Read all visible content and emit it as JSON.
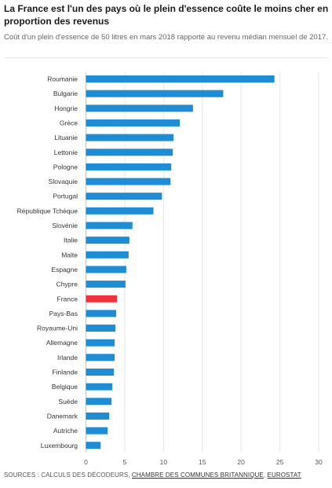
{
  "title": "La France est l'un des pays où le plein d'essence coûte le moins cher en proportion des revenus",
  "subtitle": "Coût d'un plein d'essence de 50 litres en mars 2018 rapporté au revenu médian mensuel de 2017.",
  "source": {
    "prefix": "SOURCES : CALCULS DES DÉCODEURS,",
    "link1": "CHAMBRE DES COMMUNES BRITANNIQUE",
    "sep": ",",
    "link2": "EUROSTAT"
  },
  "colors": {
    "bar": "#1f8dd6",
    "highlight": "#f0333a",
    "grid": "#e6e6e6",
    "label": "#333333"
  },
  "chart_data": {
    "type": "bar",
    "orientation": "horizontal",
    "categories": [
      "Roumanie",
      "Bulgarie",
      "Hongrie",
      "Grèce",
      "Lituanie",
      "Lettonie",
      "Pologne",
      "Slovaquie",
      "Portugal",
      "République Tchèque",
      "Slovénie",
      "Italie",
      "Malte",
      "Espagne",
      "Chypre",
      "France",
      "Pays-Bas",
      "Royaume-Uni",
      "Allemagne",
      "Irlande",
      "Finlande",
      "Belgique",
      "Suède",
      "Danemark",
      "Autriche",
      "Luxembourg"
    ],
    "values": [
      24.3,
      17.7,
      13.8,
      12.1,
      11.3,
      11.2,
      11.0,
      10.9,
      9.8,
      8.7,
      6.0,
      5.6,
      5.5,
      5.2,
      5.1,
      4.0,
      3.9,
      3.8,
      3.7,
      3.7,
      3.6,
      3.4,
      3.3,
      3.0,
      2.8,
      1.9
    ],
    "highlight": "France",
    "xlim": [
      0,
      30
    ],
    "xticks": [
      0,
      5,
      10,
      15,
      20,
      25,
      30
    ],
    "grid": true
  }
}
